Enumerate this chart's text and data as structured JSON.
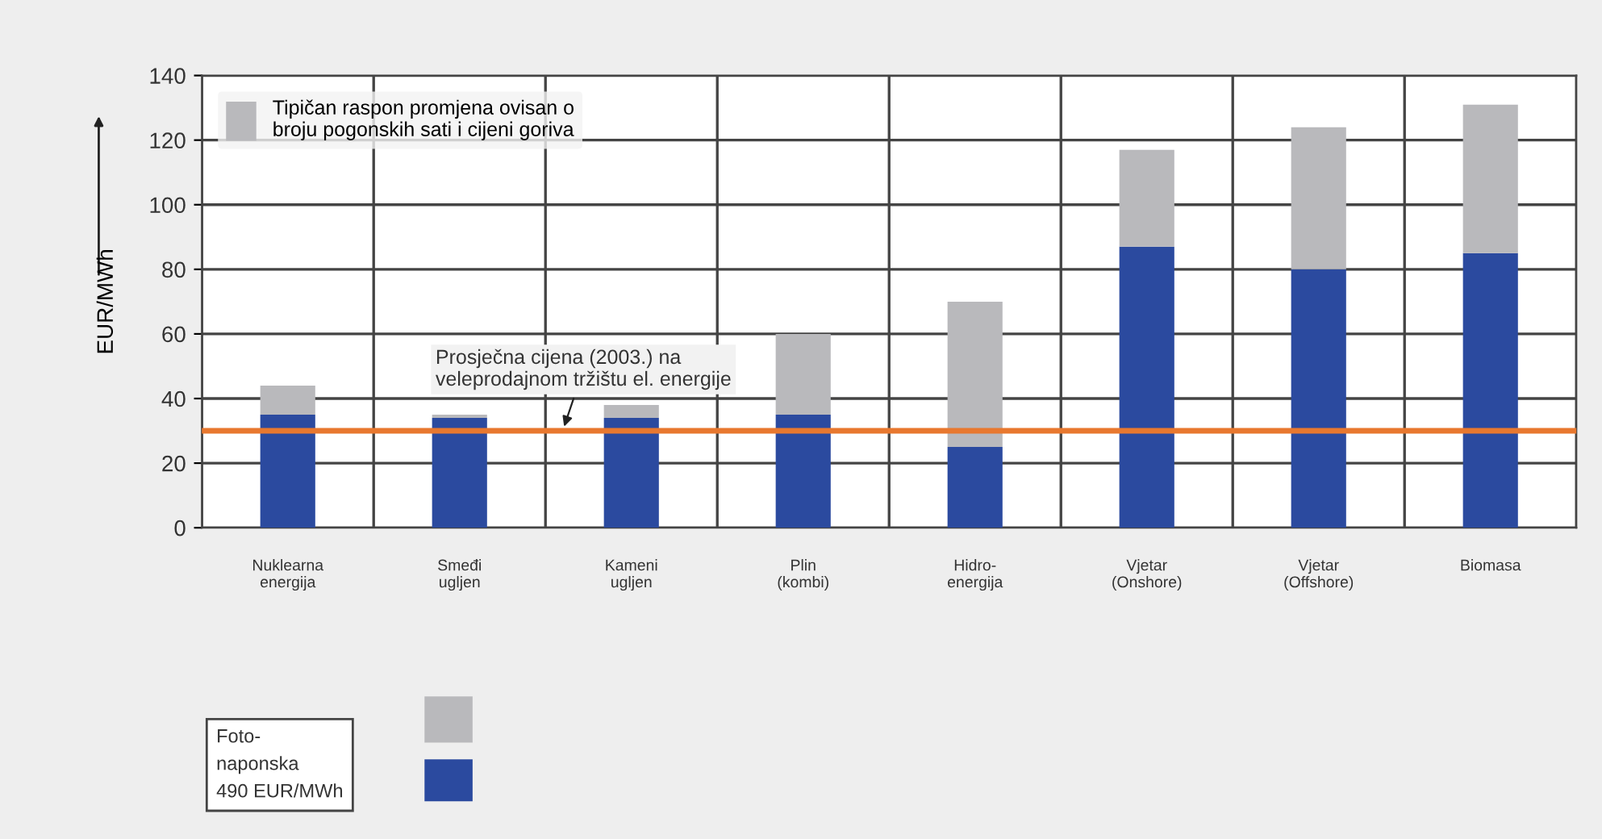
{
  "chart_data": {
    "type": "bar",
    "stacked": true,
    "ylabel": "EUR/MWh",
    "categories": [
      "Nuklearna\nenergija",
      "Smeđi\nugljen",
      "Kameni\nugljen",
      "Plin\n(kombi)",
      "Hidro-\nenergija",
      "Vjetar\n(Onshore)",
      "Vjetar\n(Offshore)",
      "Biomasa"
    ],
    "series": [
      {
        "color": "#2b4a9f",
        "values": [
          35,
          34,
          34,
          35,
          25,
          87,
          80,
          85
        ]
      },
      {
        "name": "Tipičan raspon promjena ovisan o\nbroju pogonskih sati i cijeni goriva",
        "color": "#b9b9bc",
        "values": [
          9,
          1,
          4,
          25,
          45,
          30,
          44,
          46
        ]
      }
    ],
    "ylim": [
      0,
      140
    ],
    "yticks": [
      0,
      20,
      40,
      60,
      80,
      100,
      120,
      140
    ],
    "grid": true,
    "legend": "top left",
    "ref_lines": [
      {
        "axis": "y",
        "value": 30,
        "label": "Prosječna cijena (2003.) na\nveleprodajnom tržištu el. energije",
        "color": "#e8782f"
      }
    ],
    "annotations": [
      "Foto-\nnaponska\n490 EUR/MWh"
    ]
  }
}
